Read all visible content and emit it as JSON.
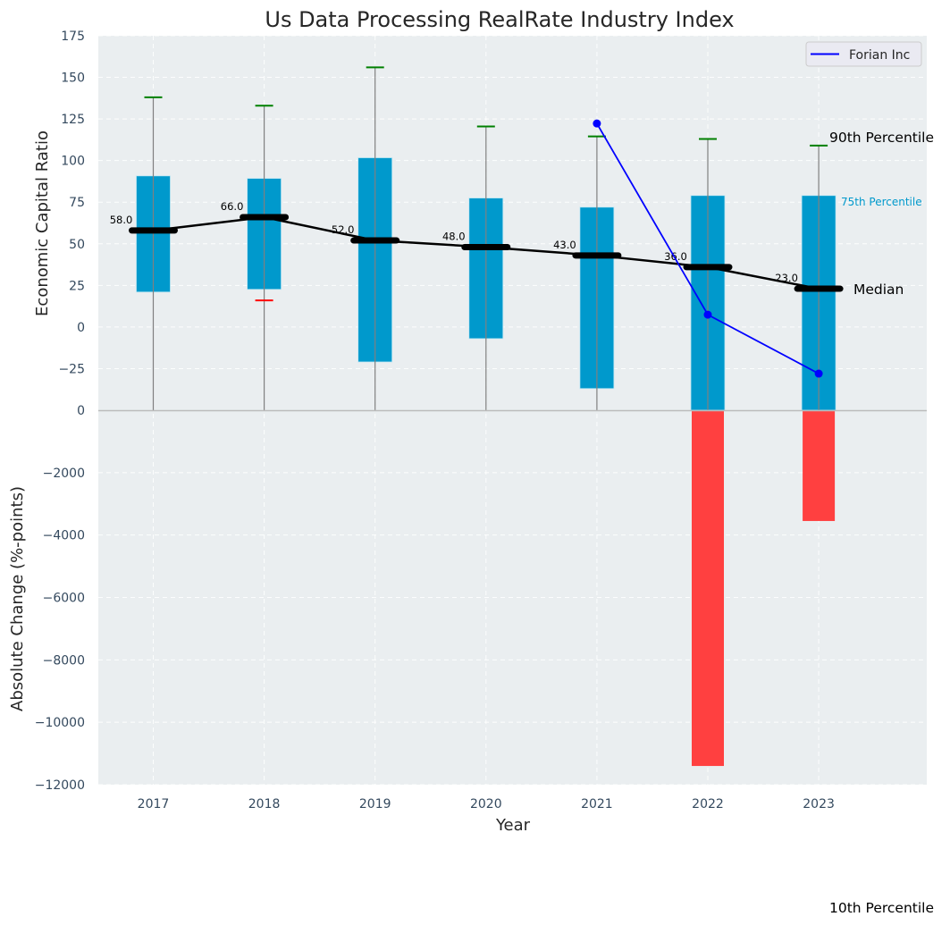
{
  "chart_data": {
    "type": "bar",
    "title": "Us Data Processing RealRate Industry Index",
    "xlabel": "Year",
    "categories": [
      "2017",
      "2018",
      "2019",
      "2020",
      "2021",
      "2022",
      "2023"
    ],
    "top_panel": {
      "ylabel": "Economic Capital Ratio",
      "ylim": [
        -50,
        175
      ],
      "yticks": [
        175,
        150,
        125,
        100,
        75,
        50,
        25,
        0,
        -25
      ],
      "yticklabels": [
        "175",
        "150",
        "125",
        "100",
        "75",
        "50",
        "25",
        "0",
        "−25"
      ],
      "grid": true,
      "percentile_25": [
        21,
        22.6,
        -21,
        -7,
        -37,
        -50,
        -50
      ],
      "percentile_75": [
        90.8,
        89.3,
        101.7,
        77.5,
        72,
        79,
        79
      ],
      "percentile_90": [
        138,
        133,
        156,
        120.5,
        114.5,
        113,
        109
      ],
      "percentile_10": [
        null,
        16,
        null,
        null,
        null,
        null,
        null
      ],
      "median": [
        58,
        66,
        52,
        48,
        43,
        36,
        23
      ],
      "median_labels": [
        "58.0",
        "66.0",
        "52.0",
        "48.0",
        "43.0",
        "36.0",
        "23.0"
      ],
      "series": [
        {
          "name": "Forian Inc",
          "color": "#0000ff",
          "x": [
            "2021",
            "2022",
            "2023"
          ],
          "values": [
            122.3,
            7.4,
            -28
          ]
        }
      ],
      "legend": {
        "entries": [
          "Forian Inc"
        ],
        "position": "top-right"
      },
      "annotations": {
        "p90": "90th Percentile",
        "p75": "75th Percentile",
        "median": "Median",
        "p10": "10th Percentile"
      },
      "colors": {
        "box": "#0099cc",
        "p90_tick": "#008000",
        "p10_tick": "#ff0000",
        "median": "#000000",
        "whisker": "#808080"
      }
    },
    "bottom_panel": {
      "ylabel": "Absolute Change (%-points)",
      "ylim": [
        -12000,
        0
      ],
      "yticks": [
        0,
        -2000,
        -4000,
        -6000,
        -8000,
        -10000,
        -12000
      ],
      "yticklabels": [
        "0",
        "−2000",
        "−4000",
        "−6000",
        "−8000",
        "−10000",
        "−12000"
      ],
      "values": [
        0,
        0,
        0,
        0,
        0,
        -11400,
        -3550
      ],
      "color": "#ff4040"
    }
  }
}
